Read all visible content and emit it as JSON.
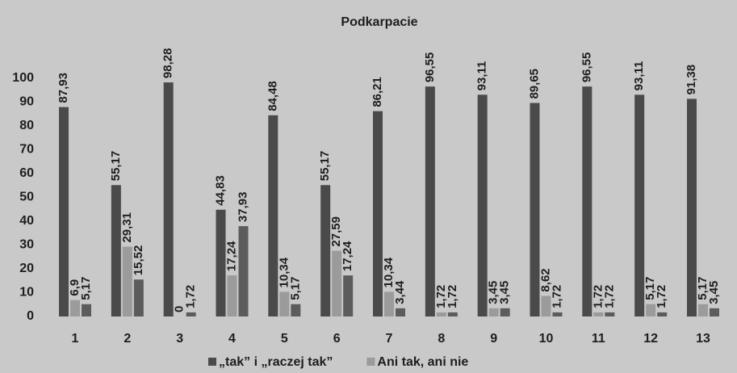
{
  "chart_data": {
    "type": "bar",
    "title": "Podkarpacie",
    "categories": [
      "1",
      "2",
      "3",
      "4",
      "5",
      "6",
      "7",
      "8",
      "9",
      "10",
      "11",
      "12",
      "13"
    ],
    "series": [
      {
        "name": "„tak” i „raczej tak”",
        "color": "#4a4a4a",
        "values": [
          87.93,
          55.17,
          98.28,
          44.83,
          84.48,
          55.17,
          86.21,
          96.55,
          93.11,
          89.65,
          96.55,
          93.11,
          91.38
        ],
        "value_labels": [
          "87,93",
          "55,17",
          "98,28",
          "44,83",
          "84,48",
          "55,17",
          "86,21",
          "96,55",
          "93,11",
          "89,65",
          "96,55",
          "93,11",
          "91,38"
        ]
      },
      {
        "name": "Ani tak, ani nie",
        "color": "#9b9b9b",
        "values": [
          6.9,
          29.31,
          0,
          17.24,
          10.34,
          27.59,
          10.34,
          1.72,
          3.45,
          8.62,
          1.72,
          5.17,
          5.17
        ],
        "value_labels": [
          "6,9",
          "29,31",
          "0",
          "17,24",
          "10,34",
          "27,59",
          "10,34",
          "1,72",
          "3,45",
          "8,62",
          "1,72",
          "5,17",
          "5,17"
        ]
      },
      {
        "color": "#5c5c5c",
        "values": [
          5.17,
          15.52,
          1.72,
          37.93,
          5.17,
          17.24,
          3.44,
          1.72,
          3.45,
          1.72,
          1.72,
          1.72,
          3.45
        ],
        "value_labels": [
          "5,17",
          "15,52",
          "1,72",
          "37,93",
          "5,17",
          "17,24",
          "3,44",
          "1,72",
          "3,45",
          "1,72",
          "1,72",
          "1,72",
          "3,45"
        ]
      }
    ],
    "ylim": [
      0,
      100
    ],
    "yticks": [
      0,
      10,
      20,
      30,
      40,
      50,
      60,
      70,
      80,
      90,
      100
    ],
    "grid": false
  }
}
